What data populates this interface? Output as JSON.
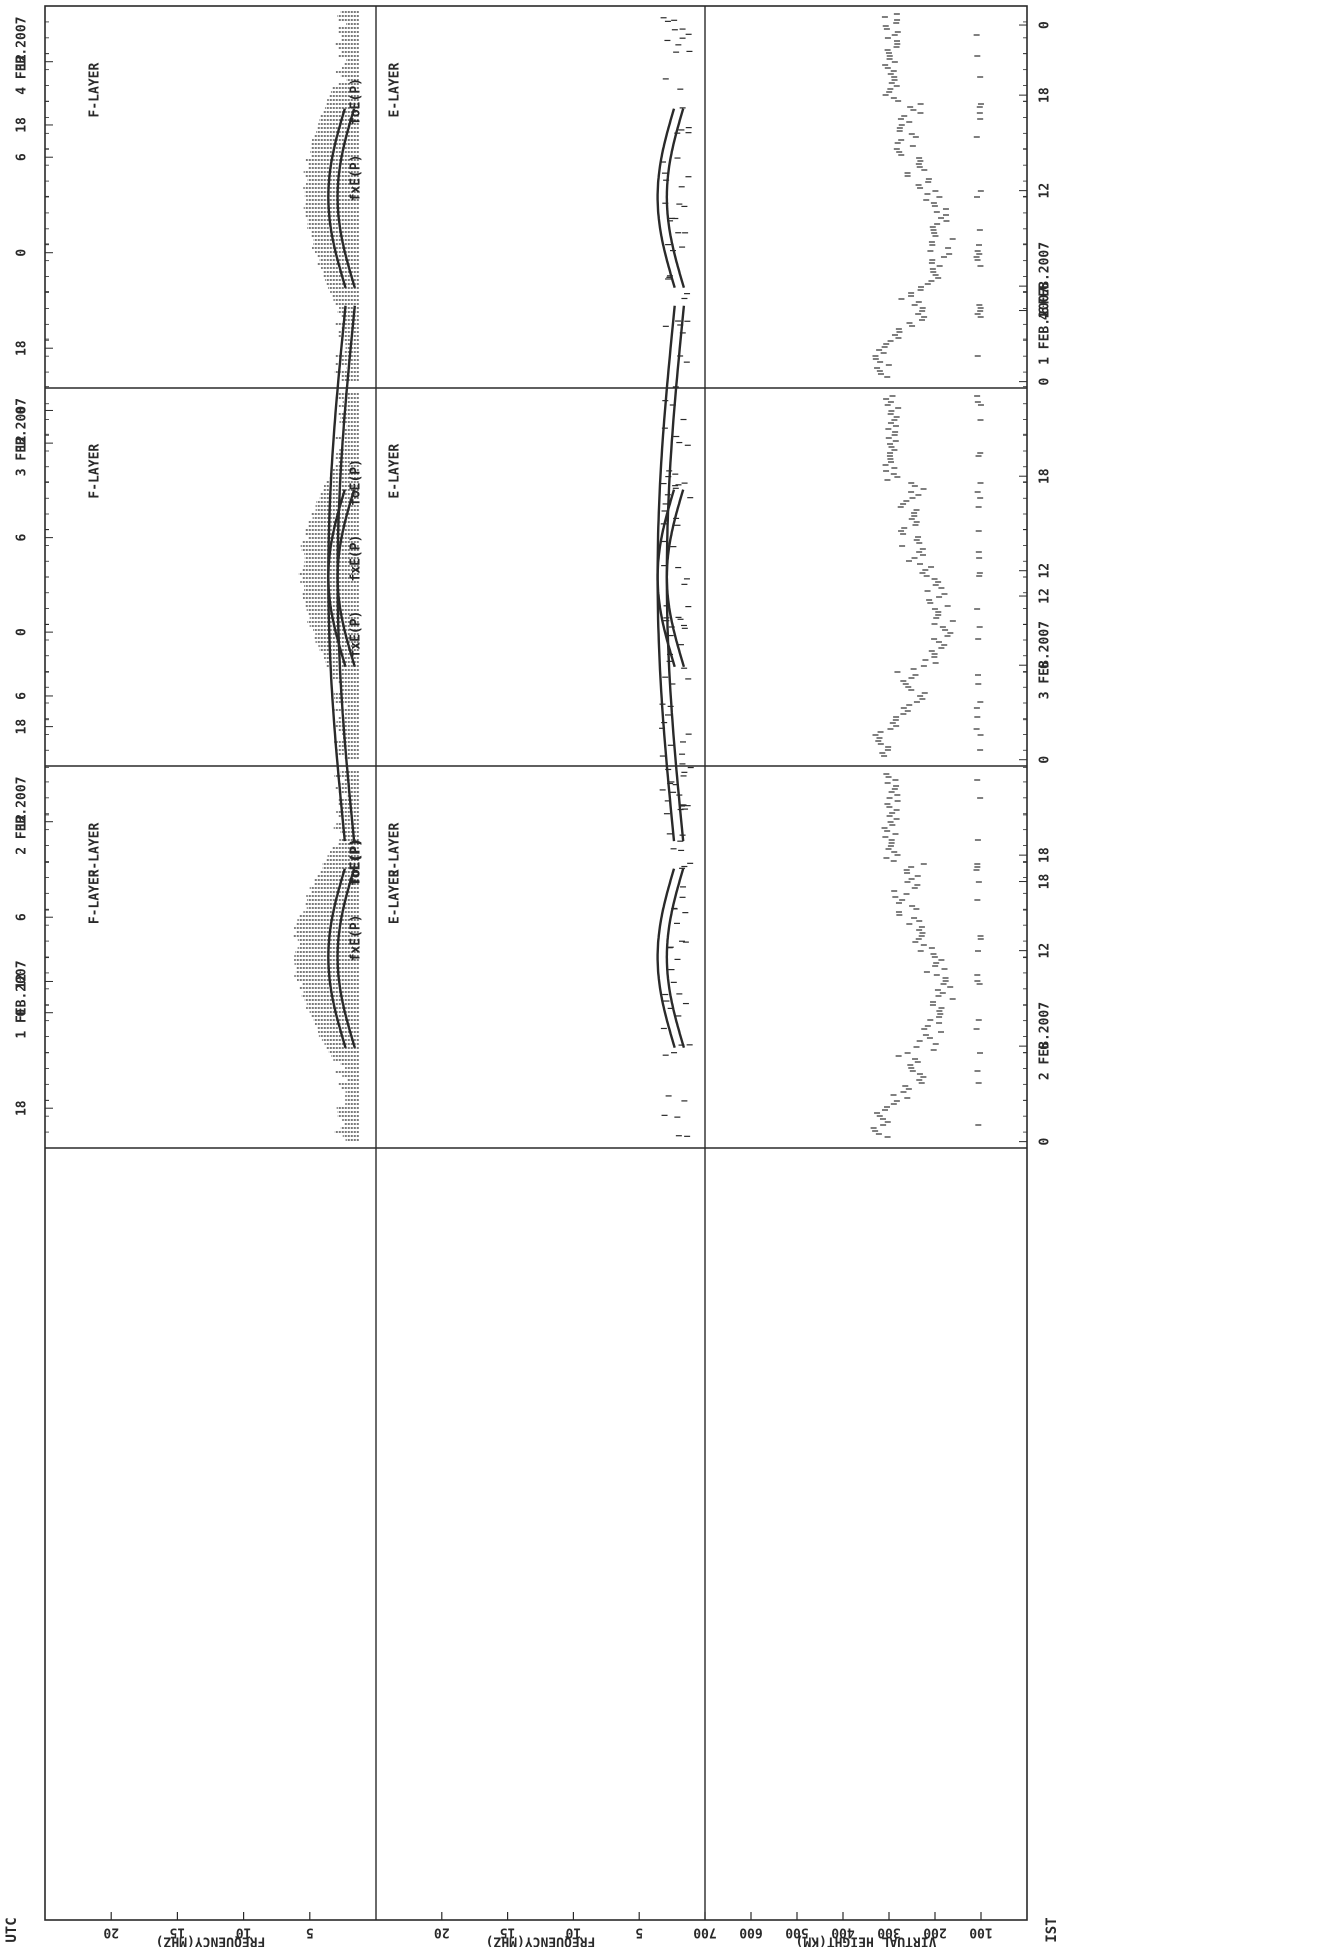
{
  "chart_data": {
    "type": "scatter",
    "rotation": "rotated 90 degrees (read with page turned clockwise)",
    "bottom_left_axis_label": "UTC",
    "bottom_right_axis_label": "IST",
    "utc_ticks": [
      "18",
      "0",
      "6",
      "12"
    ],
    "ist_ticks": [
      "0",
      "6",
      "12",
      "18"
    ],
    "days": [
      {
        "utc_label": "1 FEB.2007",
        "ist_label": "1 FEB.2007",
        "foF2_peak_mhz": 6.8
      },
      {
        "utc_label": "2 FEB.2007",
        "ist_label": "2 FEB.2007",
        "foF2_peak_mhz": 6.4
      },
      {
        "utc_label": "3 FEB.2007",
        "ist_label": "3 FEB.2007",
        "foF2_peak_mhz": 5.9
      },
      {
        "utc_label": "4 FEB.2007",
        "ist_label": "4 FEB.2007",
        "foF2_peak_mhz": 5.6
      }
    ],
    "panels": [
      {
        "name": "f-layer",
        "layer_label": "F-LAYER",
        "curve_labels": [
          "fxE(P)",
          "foE(P)"
        ],
        "axis_label": "FREQUENCY(MHZ)",
        "ticks": [
          "5",
          "10",
          "15",
          "20"
        ],
        "range": [
          0,
          25
        ]
      },
      {
        "name": "e-layer",
        "layer_label": "E-LAYER",
        "axis_label": "FREQUENCY(MHZ)",
        "ticks": [
          "5",
          "10",
          "15",
          "20"
        ],
        "range": [
          0,
          25
        ]
      },
      {
        "name": "virtual-height",
        "axis_label": "VIRTUAL HEIGHT(KM)",
        "ticks": [
          "100",
          "200",
          "300",
          "400",
          "500",
          "600",
          "700"
        ],
        "range": [
          0,
          700
        ]
      }
    ]
  }
}
